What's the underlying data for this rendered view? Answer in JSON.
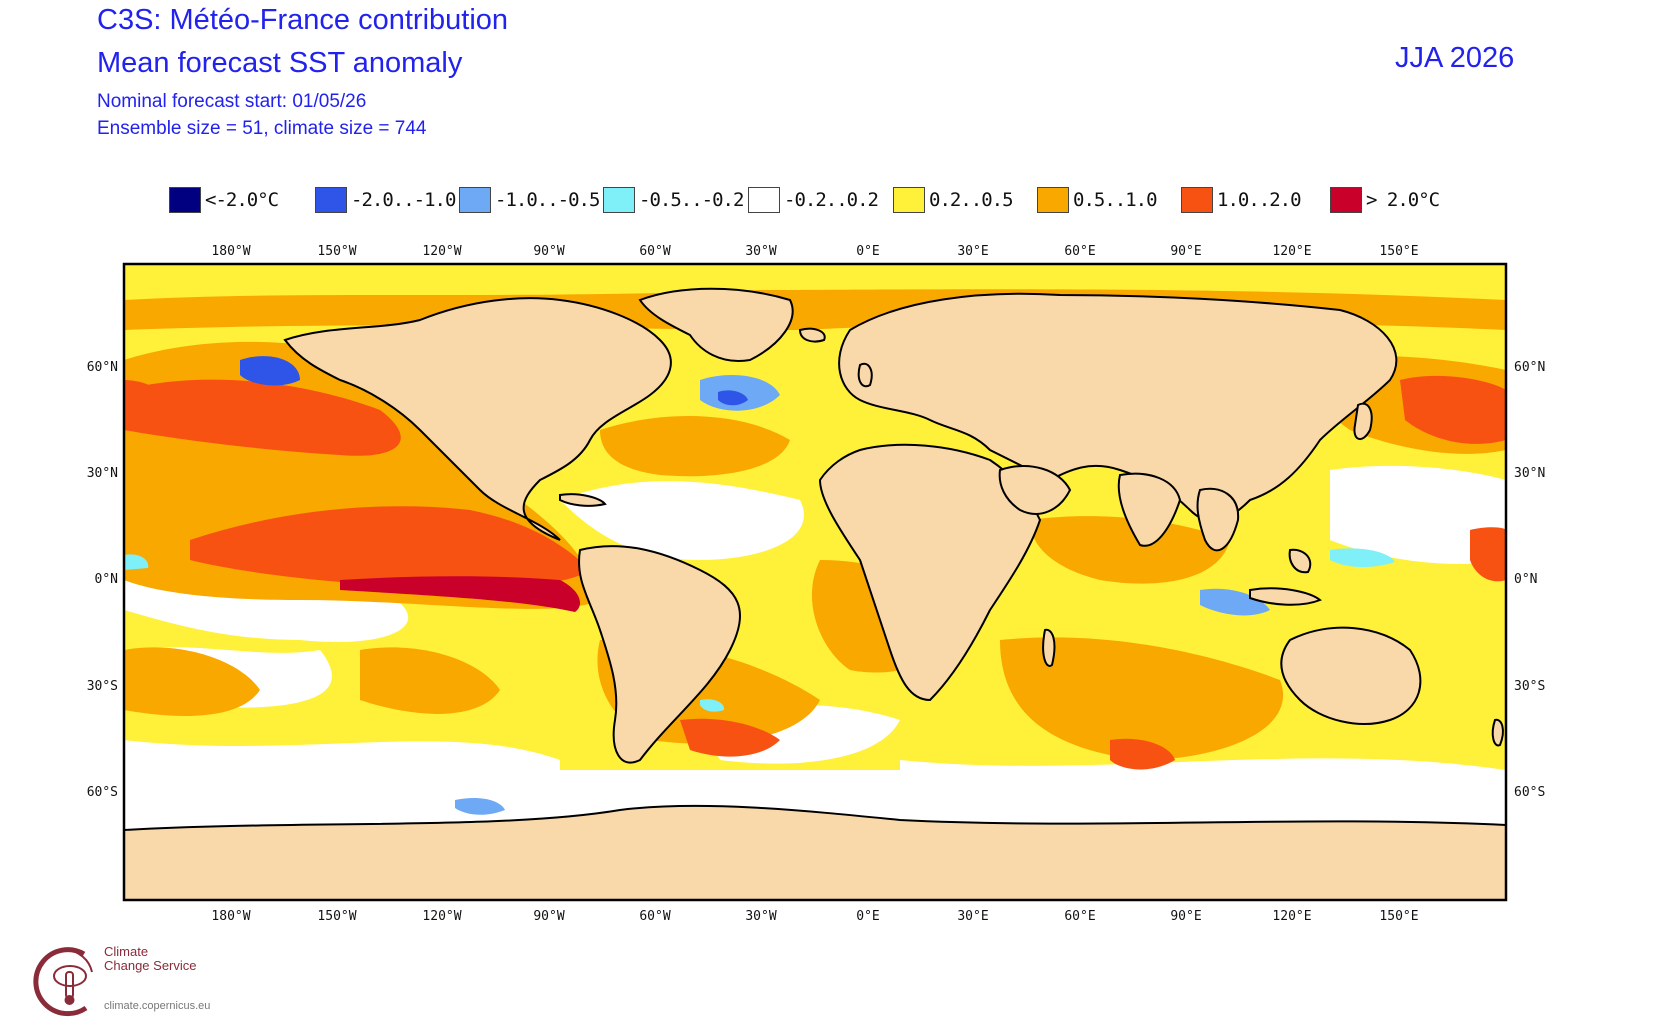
{
  "header": {
    "title_line1": "C3S: Météo-France contribution",
    "title_line2": "Mean forecast SST anomaly",
    "forecast_start": "Nominal forecast start: 01/05/26",
    "ensemble": "Ensemble size = 51, climate size = 744",
    "period": "JJA 2026"
  },
  "legend": [
    {
      "label": "<-2.0°C",
      "color": "#000080"
    },
    {
      "label": "-2.0..-1.0",
      "color": "#2f55e8"
    },
    {
      "label": "-1.0..-0.5",
      "color": "#6ea9f5"
    },
    {
      "label": "-0.5..-0.2",
      "color": "#7ff0f7"
    },
    {
      "label": "-0.2..0.2",
      "color": "#ffffff"
    },
    {
      "label": "0.2..0.5",
      "color": "#fff03a"
    },
    {
      "label": "0.5..1.0",
      "color": "#f9a800"
    },
    {
      "label": "1.0..2.0",
      "color": "#f75212"
    },
    {
      "label": "> 2.0°C",
      "color": "#c8002a"
    }
  ],
  "axes": {
    "lon_labels": [
      "180°W",
      "150°W",
      "120°W",
      "90°W",
      "60°W",
      "30°W",
      "0°E",
      "30°E",
      "60°E",
      "90°E",
      "120°E",
      "150°E"
    ],
    "lat_labels": [
      "60°N",
      "30°N",
      "0°N",
      "30°S",
      "60°S"
    ]
  },
  "colors": {
    "land": "#f9d8aa",
    "coast": "#000000",
    "border": "#9a9a9a"
  },
  "logo": {
    "line1": "Climate",
    "line2": "Change Service",
    "url": "climate.copernicus.eu"
  }
}
